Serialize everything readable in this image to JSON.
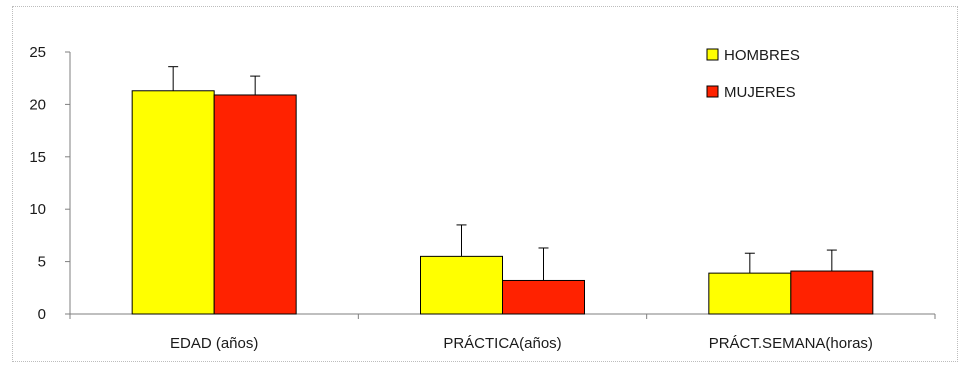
{
  "chart_data": {
    "type": "bar",
    "title": "",
    "xlabel": "",
    "ylabel": "",
    "categories": [
      "EDAD (años)",
      "PRÁCTICA(años)",
      "PRÁCT.SEMANA(horas)"
    ],
    "series": [
      {
        "name": "HOMBRES",
        "color": "#ffff00",
        "values": [
          21.3,
          5.5,
          3.9
        ],
        "error_plus": [
          2.3,
          3.0,
          1.9
        ]
      },
      {
        "name": "MUJERES",
        "color": "#ff2200",
        "values": [
          20.9,
          3.2,
          4.1
        ],
        "error_plus": [
          1.8,
          3.1,
          2.0
        ]
      }
    ],
    "ylim": [
      0,
      25
    ],
    "yticks": [
      0,
      5,
      10,
      15,
      20,
      25
    ],
    "grid": false,
    "legend": "top-right"
  }
}
